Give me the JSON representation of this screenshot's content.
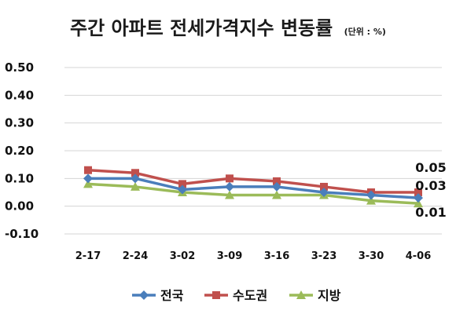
{
  "chart_data": {
    "type": "line",
    "title": "주간 아파트 전세가격지수 변동률",
    "unit_note": "(단위 : %)",
    "categories": [
      "2-17",
      "2-24",
      "3-02",
      "3-09",
      "3-16",
      "3-23",
      "3-30",
      "4-06"
    ],
    "y_ticks": [
      "0.50",
      "0.40",
      "0.30",
      "0.20",
      "0.10",
      "0.00",
      "-0.10"
    ],
    "ylim": [
      -0.1,
      0.5
    ],
    "grid": true,
    "legend_position": "bottom",
    "series": [
      {
        "name": "전국",
        "color": "#4a7ebb",
        "marker": "diamond",
        "values": [
          0.1,
          0.1,
          0.06,
          0.07,
          0.07,
          0.05,
          0.04,
          0.03
        ]
      },
      {
        "name": "수도권",
        "color": "#c0504d",
        "marker": "square",
        "values": [
          0.13,
          0.12,
          0.08,
          0.1,
          0.09,
          0.07,
          0.05,
          0.05
        ]
      },
      {
        "name": "지방",
        "color": "#9bbb59",
        "marker": "triangle",
        "values": [
          0.08,
          0.07,
          0.05,
          0.04,
          0.04,
          0.04,
          0.02,
          0.01
        ]
      }
    ],
    "data_labels": [
      {
        "series": "수도권",
        "category": "4-06",
        "text": "0.05"
      },
      {
        "series": "전국",
        "category": "4-06",
        "text": "0.03"
      },
      {
        "series": "지방",
        "category": "4-06",
        "text": "0.01"
      }
    ]
  }
}
